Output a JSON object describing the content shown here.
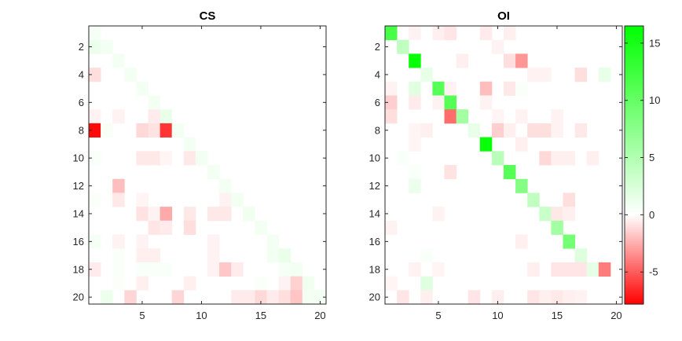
{
  "chart_data": [
    {
      "type": "heatmap",
      "title": "CS",
      "x_range": [
        0.5,
        20.5
      ],
      "y_range": [
        0.5,
        20.5
      ],
      "y_direction": "reverse",
      "x_ticks": [
        5,
        10,
        15,
        20
      ],
      "y_ticks": [
        2,
        4,
        6,
        8,
        10,
        12,
        14,
        16,
        18,
        20
      ],
      "grid": false,
      "cells": [
        {
          "row": 1,
          "col": 1,
          "value": 0.6
        },
        {
          "row": 2,
          "col": 1,
          "value": 1.2
        },
        {
          "row": 2,
          "col": 2,
          "value": 0.8
        },
        {
          "row": 3,
          "col": 3,
          "value": 0.7
        },
        {
          "row": 4,
          "col": 1,
          "value": -1.0
        },
        {
          "row": 4,
          "col": 4,
          "value": 0.7
        },
        {
          "row": 5,
          "col": 5,
          "value": 0.7
        },
        {
          "row": 6,
          "col": 6,
          "value": 0.7
        },
        {
          "row": 7,
          "col": 1,
          "value": -0.4
        },
        {
          "row": 7,
          "col": 3,
          "value": -0.4
        },
        {
          "row": 7,
          "col": 6,
          "value": -0.6
        },
        {
          "row": 7,
          "col": 7,
          "value": 1.4
        },
        {
          "row": 8,
          "col": 1,
          "value": -7.5
        },
        {
          "row": 8,
          "col": 2,
          "value": 0.5
        },
        {
          "row": 8,
          "col": 5,
          "value": -1.2
        },
        {
          "row": 8,
          "col": 6,
          "value": -0.9
        },
        {
          "row": 8,
          "col": 7,
          "value": -6.2
        },
        {
          "row": 8,
          "col": 8,
          "value": 0.8
        },
        {
          "row": 9,
          "col": 9,
          "value": 0.8
        },
        {
          "row": 10,
          "col": 1,
          "value": 0.4
        },
        {
          "row": 10,
          "col": 5,
          "value": -0.7
        },
        {
          "row": 10,
          "col": 6,
          "value": -0.7
        },
        {
          "row": 10,
          "col": 7,
          "value": -0.3
        },
        {
          "row": 10,
          "col": 9,
          "value": -0.7
        },
        {
          "row": 10,
          "col": 10,
          "value": 0.8
        },
        {
          "row": 11,
          "col": 11,
          "value": 0.8
        },
        {
          "row": 12,
          "col": 3,
          "value": -2.0
        },
        {
          "row": 12,
          "col": 12,
          "value": 0.8
        },
        {
          "row": 13,
          "col": 1,
          "value": 0.3
        },
        {
          "row": 13,
          "col": 3,
          "value": -0.7
        },
        {
          "row": 13,
          "col": 5,
          "value": -0.3
        },
        {
          "row": 13,
          "col": 12,
          "value": -0.4
        },
        {
          "row": 13,
          "col": 13,
          "value": 0.8
        },
        {
          "row": 14,
          "col": 5,
          "value": -0.9
        },
        {
          "row": 14,
          "col": 6,
          "value": -0.4
        },
        {
          "row": 14,
          "col": 7,
          "value": -2.6
        },
        {
          "row": 14,
          "col": 9,
          "value": -0.7
        },
        {
          "row": 14,
          "col": 11,
          "value": -0.7
        },
        {
          "row": 14,
          "col": 12,
          "value": -0.7
        },
        {
          "row": 14,
          "col": 14,
          "value": 0.9
        },
        {
          "row": 15,
          "col": 6,
          "value": -0.8
        },
        {
          "row": 15,
          "col": 7,
          "value": -0.6
        },
        {
          "row": 15,
          "col": 9,
          "value": -1.0
        },
        {
          "row": 15,
          "col": 15,
          "value": 0.8
        },
        {
          "row": 16,
          "col": 1,
          "value": 0.6
        },
        {
          "row": 16,
          "col": 3,
          "value": -0.4
        },
        {
          "row": 16,
          "col": 5,
          "value": -0.4
        },
        {
          "row": 16,
          "col": 11,
          "value": -0.4
        },
        {
          "row": 16,
          "col": 16,
          "value": 0.8
        },
        {
          "row": 17,
          "col": 3,
          "value": 0.4
        },
        {
          "row": 17,
          "col": 5,
          "value": -0.5
        },
        {
          "row": 17,
          "col": 6,
          "value": -0.5
        },
        {
          "row": 17,
          "col": 11,
          "value": -0.4
        },
        {
          "row": 17,
          "col": 16,
          "value": 0.8
        },
        {
          "row": 17,
          "col": 17,
          "value": 1.4
        },
        {
          "row": 18,
          "col": 1,
          "value": -0.6
        },
        {
          "row": 18,
          "col": 3,
          "value": 0.4
        },
        {
          "row": 18,
          "col": 5,
          "value": 0.4
        },
        {
          "row": 18,
          "col": 6,
          "value": 0.4
        },
        {
          "row": 18,
          "col": 7,
          "value": 0.4
        },
        {
          "row": 18,
          "col": 11,
          "value": -0.4
        },
        {
          "row": 18,
          "col": 12,
          "value": -1.7
        },
        {
          "row": 18,
          "col": 13,
          "value": -0.6
        },
        {
          "row": 18,
          "col": 17,
          "value": 0.6
        },
        {
          "row": 18,
          "col": 18,
          "value": 0.8
        },
        {
          "row": 19,
          "col": 3,
          "value": 0.3
        },
        {
          "row": 19,
          "col": 5,
          "value": -0.5
        },
        {
          "row": 19,
          "col": 9,
          "value": -0.5
        },
        {
          "row": 19,
          "col": 15,
          "value": 0.3
        },
        {
          "row": 19,
          "col": 17,
          "value": -0.4
        },
        {
          "row": 19,
          "col": 18,
          "value": -1.4
        },
        {
          "row": 19,
          "col": 19,
          "value": 1.0
        },
        {
          "row": 20,
          "col": 2,
          "value": 1.2
        },
        {
          "row": 20,
          "col": 4,
          "value": -1.3
        },
        {
          "row": 20,
          "col": 8,
          "value": -1.3
        },
        {
          "row": 20,
          "col": 13,
          "value": -0.6
        },
        {
          "row": 20,
          "col": 14,
          "value": -0.6
        },
        {
          "row": 20,
          "col": 15,
          "value": -1.2
        },
        {
          "row": 20,
          "col": 16,
          "value": -0.6
        },
        {
          "row": 20,
          "col": 17,
          "value": -1.0
        },
        {
          "row": 20,
          "col": 18,
          "value": -1.8
        },
        {
          "row": 20,
          "col": 19,
          "value": 0.7
        },
        {
          "row": 20,
          "col": 20,
          "value": 0.8
        }
      ]
    },
    {
      "type": "heatmap",
      "title": "OI",
      "x_range": [
        0.5,
        20.5
      ],
      "y_range": [
        0.5,
        20.5
      ],
      "y_direction": "reverse",
      "x_ticks": [
        5,
        10,
        15,
        20
      ],
      "y_ticks": [
        2,
        4,
        6,
        8,
        10,
        12,
        14,
        16,
        18,
        20
      ],
      "grid": false,
      "cells": [
        {
          "row": 1,
          "col": 1,
          "value": 12.0
        },
        {
          "row": 1,
          "col": 3,
          "value": -0.4
        },
        {
          "row": 1,
          "col": 5,
          "value": -0.5
        },
        {
          "row": 1,
          "col": 6,
          "value": -0.8
        },
        {
          "row": 1,
          "col": 9,
          "value": -0.6
        },
        {
          "row": 1,
          "col": 11,
          "value": -0.5
        },
        {
          "row": 2,
          "col": 2,
          "value": 4.0
        },
        {
          "row": 2,
          "col": 10,
          "value": -0.4
        },
        {
          "row": 3,
          "col": 3,
          "value": 16.0
        },
        {
          "row": 3,
          "col": 7,
          "value": -0.5
        },
        {
          "row": 3,
          "col": 11,
          "value": -1.0
        },
        {
          "row": 3,
          "col": 12,
          "value": -3.2
        },
        {
          "row": 4,
          "col": 4,
          "value": 1.5
        },
        {
          "row": 4,
          "col": 13,
          "value": -0.4
        },
        {
          "row": 4,
          "col": 14,
          "value": -0.4
        },
        {
          "row": 4,
          "col": 17,
          "value": -1.0
        },
        {
          "row": 4,
          "col": 19,
          "value": 1.5
        },
        {
          "row": 5,
          "col": 1,
          "value": -0.4
        },
        {
          "row": 5,
          "col": 3,
          "value": 2.0
        },
        {
          "row": 5,
          "col": 5,
          "value": 11.0
        },
        {
          "row": 5,
          "col": 6,
          "value": -0.4
        },
        {
          "row": 5,
          "col": 9,
          "value": -2.0
        },
        {
          "row": 5,
          "col": 11,
          "value": -0.7
        },
        {
          "row": 5,
          "col": 12,
          "value": 0.4
        },
        {
          "row": 6,
          "col": 1,
          "value": -1.5
        },
        {
          "row": 6,
          "col": 3,
          "value": -0.6
        },
        {
          "row": 6,
          "col": 5,
          "value": -0.4
        },
        {
          "row": 6,
          "col": 6,
          "value": 11.0
        },
        {
          "row": 6,
          "col": 9,
          "value": -0.4
        },
        {
          "row": 7,
          "col": 1,
          "value": -1.0
        },
        {
          "row": 7,
          "col": 6,
          "value": -4.5
        },
        {
          "row": 7,
          "col": 7,
          "value": 6.0
        },
        {
          "row": 7,
          "col": 10,
          "value": -0.3
        },
        {
          "row": 7,
          "col": 12,
          "value": -0.4
        },
        {
          "row": 7,
          "col": 15,
          "value": -0.4
        },
        {
          "row": 8,
          "col": 3,
          "value": -0.3
        },
        {
          "row": 8,
          "col": 4,
          "value": -0.5
        },
        {
          "row": 8,
          "col": 8,
          "value": 1.5
        },
        {
          "row": 8,
          "col": 10,
          "value": -1.5
        },
        {
          "row": 8,
          "col": 11,
          "value": -0.5
        },
        {
          "row": 8,
          "col": 13,
          "value": -1.0
        },
        {
          "row": 8,
          "col": 14,
          "value": -1.0
        },
        {
          "row": 8,
          "col": 15,
          "value": -0.4
        },
        {
          "row": 8,
          "col": 17,
          "value": -0.7
        },
        {
          "row": 9,
          "col": 3,
          "value": -0.3
        },
        {
          "row": 9,
          "col": 9,
          "value": 16.0
        },
        {
          "row": 9,
          "col": 12,
          "value": -0.5
        },
        {
          "row": 10,
          "col": 2,
          "value": 0.4
        },
        {
          "row": 10,
          "col": 10,
          "value": 4.5
        },
        {
          "row": 10,
          "col": 14,
          "value": -1.2
        },
        {
          "row": 10,
          "col": 15,
          "value": -0.5
        },
        {
          "row": 10,
          "col": 16,
          "value": -0.5
        },
        {
          "row": 10,
          "col": 18,
          "value": -0.5
        },
        {
          "row": 11,
          "col": 3,
          "value": 0.4
        },
        {
          "row": 11,
          "col": 6,
          "value": -0.9
        },
        {
          "row": 11,
          "col": 11,
          "value": 11.0
        },
        {
          "row": 12,
          "col": 3,
          "value": 1.2
        },
        {
          "row": 12,
          "col": 12,
          "value": 8.0
        },
        {
          "row": 13,
          "col": 13,
          "value": 4.0
        },
        {
          "row": 13,
          "col": 16,
          "value": -1.0
        },
        {
          "row": 14,
          "col": 5,
          "value": -0.4
        },
        {
          "row": 14,
          "col": 14,
          "value": 3.5
        },
        {
          "row": 14,
          "col": 15,
          "value": -0.7
        },
        {
          "row": 14,
          "col": 16,
          "value": -0.5
        },
        {
          "row": 15,
          "col": 1,
          "value": -0.4
        },
        {
          "row": 15,
          "col": 15,
          "value": 6.0
        },
        {
          "row": 16,
          "col": 12,
          "value": -0.5
        },
        {
          "row": 16,
          "col": 16,
          "value": 9.0
        },
        {
          "row": 17,
          "col": 4,
          "value": 0.4
        },
        {
          "row": 17,
          "col": 17,
          "value": 2.2
        },
        {
          "row": 18,
          "col": 3,
          "value": -0.4
        },
        {
          "row": 18,
          "col": 5,
          "value": -0.3
        },
        {
          "row": 18,
          "col": 13,
          "value": -0.5
        },
        {
          "row": 18,
          "col": 15,
          "value": -0.8
        },
        {
          "row": 18,
          "col": 16,
          "value": -0.8
        },
        {
          "row": 18,
          "col": 17,
          "value": -0.8
        },
        {
          "row": 18,
          "col": 18,
          "value": 1.6
        },
        {
          "row": 18,
          "col": 19,
          "value": -4.0
        },
        {
          "row": 19,
          "col": 1,
          "value": -0.3
        },
        {
          "row": 19,
          "col": 4,
          "value": 2.0
        },
        {
          "row": 20,
          "col": 2,
          "value": -0.8
        },
        {
          "row": 20,
          "col": 4,
          "value": -0.5
        },
        {
          "row": 20,
          "col": 8,
          "value": -0.8
        },
        {
          "row": 20,
          "col": 10,
          "value": -0.5
        },
        {
          "row": 20,
          "col": 13,
          "value": -0.8
        },
        {
          "row": 20,
          "col": 14,
          "value": -0.5
        },
        {
          "row": 20,
          "col": 15,
          "value": -0.7
        },
        {
          "row": 20,
          "col": 16,
          "value": -0.5
        },
        {
          "row": 20,
          "col": 17,
          "value": -0.4
        }
      ]
    }
  ],
  "colorbar": {
    "range": [
      -7.8,
      16.5
    ],
    "ticks": [
      -5,
      0,
      5,
      10,
      15
    ],
    "colors": {
      "negative": "#ff0000",
      "zero": "#ffffff",
      "positive": "#00ff00"
    }
  },
  "default_cell_value": 0,
  "colors": {
    "axis": "#262626",
    "background": "#ffffff"
  }
}
